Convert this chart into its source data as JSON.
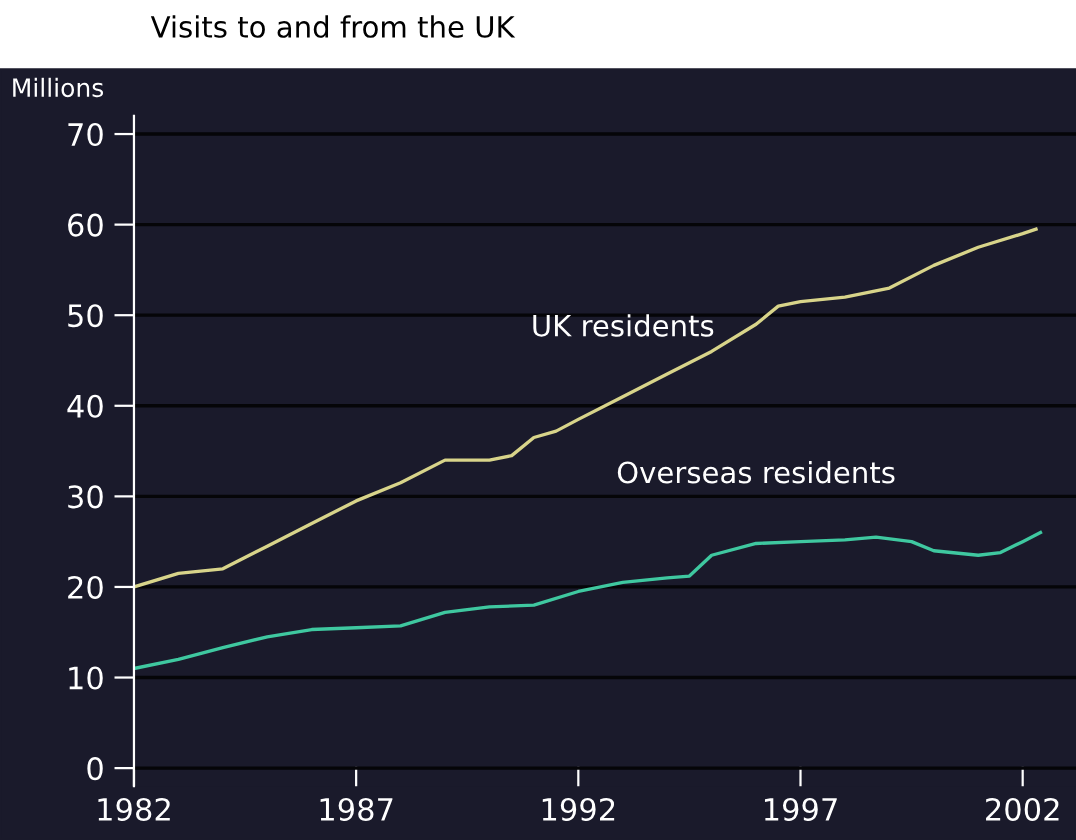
{
  "chart_data": {
    "type": "line",
    "title": "Visits to and from the UK",
    "ylabel": "Millions",
    "xlim": [
      1982,
      2003.2
    ],
    "xticks": [
      1982,
      1987,
      1992,
      1997,
      2002
    ],
    "ylim": [
      -2,
      72
    ],
    "yticks": [
      0,
      10,
      20,
      30,
      40,
      50,
      60,
      70
    ],
    "grid": "y",
    "legend": false,
    "marker": "none",
    "line_style": "solid",
    "series": [
      {
        "name": "UK residents",
        "color": "#d8d48a",
        "x": [
          1982,
          1983,
          1984,
          1985,
          1986,
          1987,
          1988,
          1989,
          1990,
          1990.5,
          1991,
          1991.5,
          1992,
          1993,
          1994,
          1995,
          1996,
          1996.5,
          1997,
          1998,
          1999,
          2000,
          2001,
          2002,
          2002.3
        ],
        "values": [
          20,
          21.5,
          22,
          24.5,
          27,
          29.5,
          31.5,
          34,
          34,
          34.5,
          36.5,
          37.2,
          38.5,
          41,
          43.5,
          46,
          49,
          51,
          51.5,
          52,
          53,
          55.5,
          57.5,
          59,
          59.5
        ]
      },
      {
        "name": "Overseas residents",
        "color": "#3fc8a0",
        "x": [
          1982,
          1983,
          1984,
          1985,
          1986,
          1987,
          1988,
          1989,
          1990,
          1991,
          1992,
          1993,
          1994,
          1994.5,
          1995,
          1996,
          1997,
          1998,
          1998.7,
          1999.5,
          2000,
          2001,
          2001.5,
          2002,
          2002.4
        ],
        "values": [
          11,
          12,
          13.3,
          14.5,
          15.3,
          15.5,
          15.7,
          17.2,
          17.8,
          18,
          19.5,
          20.5,
          21,
          21.2,
          23.5,
          24.8,
          25,
          25.2,
          25.5,
          25,
          24,
          23.5,
          23.8,
          25,
          26
        ]
      }
    ]
  }
}
